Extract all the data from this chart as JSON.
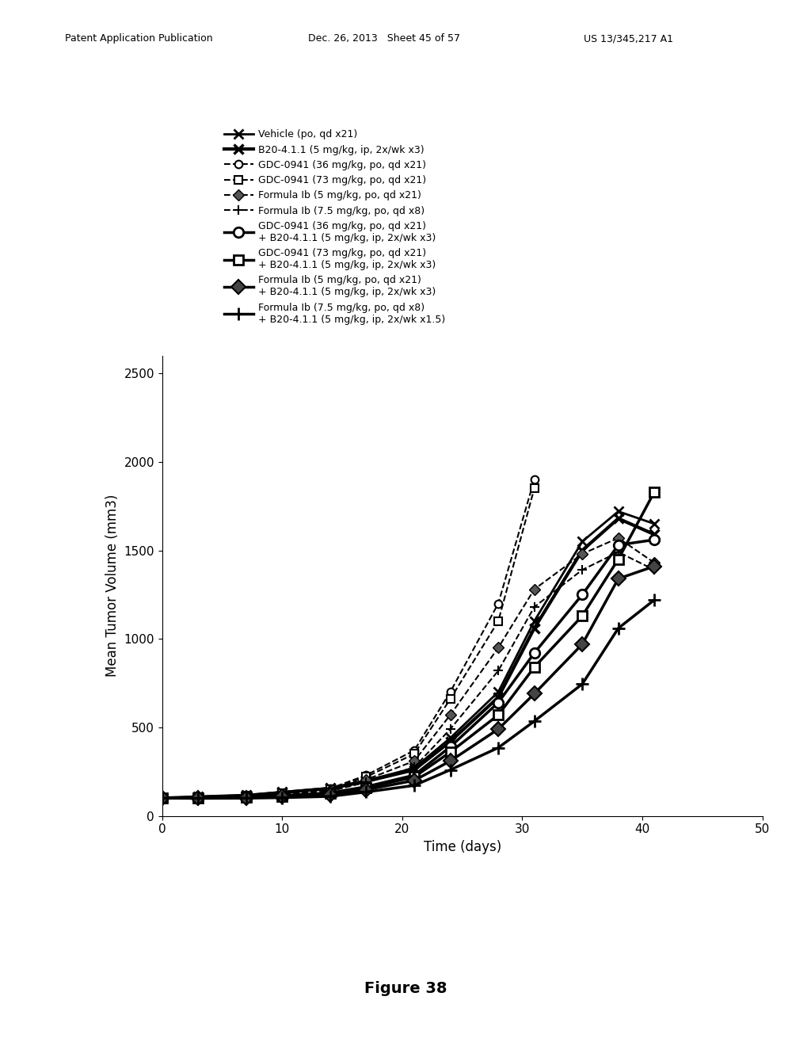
{
  "title": "",
  "xlabel": "Time (days)",
  "ylabel": "Mean Tumor Volume (mm3)",
  "figure_caption": "Figure 38",
  "xlim": [
    0,
    50
  ],
  "ylim": [
    0,
    2600
  ],
  "yticks": [
    0,
    500,
    1000,
    1500,
    2000,
    2500
  ],
  "xticks": [
    0,
    10,
    20,
    30,
    40,
    50
  ],
  "series": [
    {
      "label": "Vehicle (po, qd x21)",
      "x": [
        0,
        3,
        7,
        10,
        14,
        17,
        21,
        24,
        28,
        31,
        35,
        38,
        41
      ],
      "y": [
        100,
        108,
        117,
        135,
        158,
        200,
        270,
        440,
        700,
        1100,
        1550,
        1720,
        1650
      ],
      "lw": 2.0,
      "linestyle": "solid",
      "marker": "x",
      "markersize": 8,
      "markeredgewidth": 2.0,
      "markerfacecolor": "none"
    },
    {
      "label": "B20-4.1.1 (5 mg/kg, ip, 2x/wk x3)",
      "x": [
        0,
        3,
        7,
        10,
        14,
        17,
        21,
        24,
        28,
        31,
        35,
        38,
        41
      ],
      "y": [
        100,
        107,
        115,
        132,
        155,
        195,
        260,
        420,
        670,
        1060,
        1500,
        1680,
        1590
      ],
      "lw": 3.0,
      "linestyle": "solid",
      "marker": "x",
      "markersize": 8,
      "markeredgewidth": 2.5,
      "markerfacecolor": "none"
    },
    {
      "label": "GDC-0941 (36 mg/kg, po, qd x21)",
      "x": [
        0,
        3,
        7,
        10,
        14,
        17,
        21,
        24,
        28,
        31
      ],
      "y": [
        100,
        108,
        115,
        130,
        155,
        230,
        370,
        700,
        1200,
        1900
      ],
      "lw": 1.5,
      "linestyle": "dashed",
      "marker": "o",
      "markersize": 7,
      "markeredgewidth": 1.5,
      "markerfacecolor": "white"
    },
    {
      "label": "GDC-0941 (73 mg/kg, po, qd x21)",
      "x": [
        0,
        3,
        7,
        10,
        14,
        17,
        21,
        24,
        28,
        31
      ],
      "y": [
        100,
        107,
        113,
        128,
        150,
        220,
        350,
        660,
        1100,
        1850
      ],
      "lw": 1.5,
      "linestyle": "dashed",
      "marker": "s",
      "markersize": 7,
      "markeredgewidth": 1.5,
      "markerfacecolor": "white"
    },
    {
      "label": "Formula Ib (5 mg/kg, po, qd x21)",
      "x": [
        0,
        3,
        7,
        10,
        14,
        17,
        21,
        24,
        28,
        31,
        35,
        38,
        41
      ],
      "y": [
        100,
        106,
        112,
        125,
        148,
        205,
        310,
        570,
        950,
        1280,
        1480,
        1570,
        1430
      ],
      "lw": 1.5,
      "linestyle": "dashed",
      "marker": "D",
      "markersize": 7,
      "markeredgewidth": 1.0,
      "markerfacecolor": "#555555"
    },
    {
      "label": "Formula Ib (7.5 mg/kg, po, qd x8)",
      "x": [
        0,
        3,
        7,
        10,
        14,
        17,
        21,
        24,
        28,
        31,
        35,
        38,
        41
      ],
      "y": [
        100,
        104,
        109,
        120,
        140,
        190,
        275,
        490,
        820,
        1180,
        1390,
        1490,
        1390
      ],
      "lw": 1.5,
      "linestyle": "dashed",
      "marker": "+",
      "markersize": 9,
      "markeredgewidth": 1.5,
      "markerfacecolor": "none"
    },
    {
      "label": "GDC-0941 (36 mg/kg, po, qd x21)\n+ B20-4.1.1 (5 mg/kg, ip, 2x/wk x3)",
      "x": [
        0,
        3,
        7,
        10,
        14,
        17,
        21,
        24,
        28,
        31,
        35,
        38,
        41
      ],
      "y": [
        100,
        103,
        107,
        115,
        130,
        165,
        230,
        390,
        640,
        920,
        1250,
        1530,
        1560
      ],
      "lw": 2.5,
      "linestyle": "solid",
      "marker": "o",
      "markersize": 9,
      "markeredgewidth": 2.0,
      "markerfacecolor": "white"
    },
    {
      "label": "GDC-0941 (73 mg/kg, po, qd x21)\n+ B20-4.1.1 (5 mg/kg, ip, 2x/wk x3)",
      "x": [
        0,
        3,
        7,
        10,
        14,
        17,
        21,
        24,
        28,
        31,
        35,
        38,
        41
      ],
      "y": [
        100,
        102,
        106,
        112,
        126,
        158,
        220,
        360,
        570,
        840,
        1130,
        1450,
        1830
      ],
      "lw": 2.5,
      "linestyle": "solid",
      "marker": "s",
      "markersize": 9,
      "markeredgewidth": 2.0,
      "markerfacecolor": "white"
    },
    {
      "label": "Formula Ib (5 mg/kg, po, qd x21)\n+ B20-4.1.1 (5 mg/kg, ip, 2x/wk x3)",
      "x": [
        0,
        3,
        7,
        10,
        14,
        17,
        21,
        24,
        28,
        31,
        35,
        38,
        41
      ],
      "y": [
        100,
        100,
        103,
        108,
        118,
        148,
        200,
        310,
        490,
        690,
        970,
        1340,
        1410
      ],
      "lw": 2.5,
      "linestyle": "solid",
      "marker": "D",
      "markersize": 9,
      "markeredgewidth": 1.5,
      "markerfacecolor": "#444444"
    },
    {
      "label": "Formula Ib (7.5 mg/kg, po, qd x8)\n+ B20-4.1.1 (5 mg/kg, ip, 2x/wk x1.5)",
      "x": [
        0,
        3,
        7,
        10,
        14,
        17,
        21,
        24,
        28,
        31,
        35,
        38,
        41
      ],
      "y": [
        100,
        99,
        100,
        103,
        110,
        135,
        172,
        260,
        385,
        535,
        745,
        1060,
        1220
      ],
      "lw": 2.5,
      "linestyle": "solid",
      "marker": "+",
      "markersize": 11,
      "markeredgewidth": 2.0,
      "markerfacecolor": "none"
    }
  ],
  "bg_color": "#ffffff",
  "font_color": "#000000",
  "figsize": [
    10.24,
    13.2
  ],
  "dpi": 100
}
